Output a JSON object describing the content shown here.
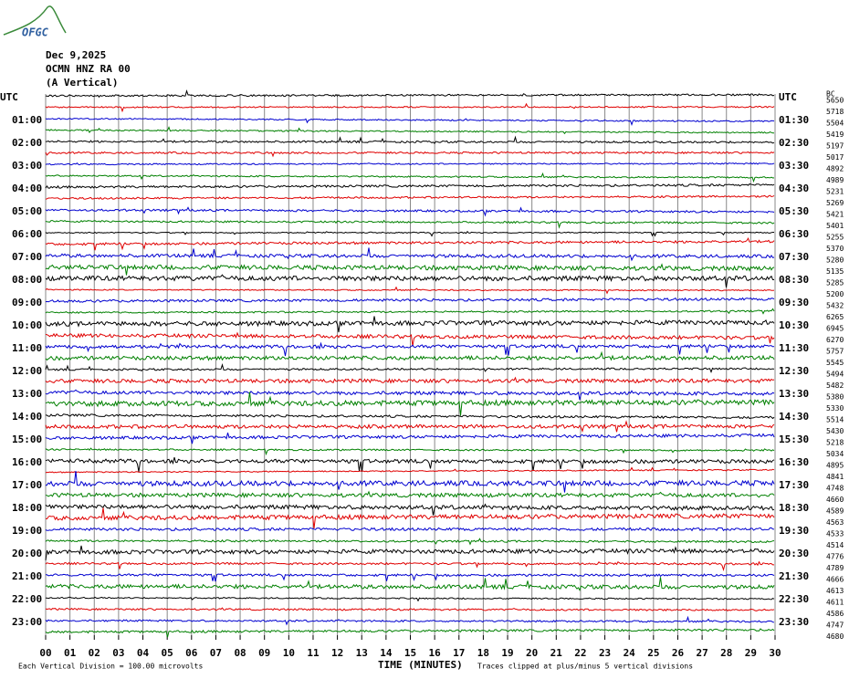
{
  "logo": {
    "text": "OFGC"
  },
  "header": {
    "date": "Dec 9,2025",
    "station": "OCMN HNZ RA 00",
    "component": "(A Vertical)"
  },
  "left_labels": [
    "UTC",
    "01:00",
    "02:00",
    "03:00",
    "04:00",
    "05:00",
    "06:00",
    "07:00",
    "08:00",
    "09:00",
    "10:00",
    "11:00",
    "12:00",
    "13:00",
    "14:00",
    "15:00",
    "16:00",
    "17:00",
    "18:00",
    "19:00",
    "20:00",
    "21:00",
    "22:00",
    "23:00"
  ],
  "right_labels": [
    "UTC",
    "01:30",
    "02:30",
    "03:30",
    "04:30",
    "05:30",
    "06:30",
    "07:30",
    "08:30",
    "09:30",
    "10:30",
    "11:30",
    "12:30",
    "13:30",
    "14:30",
    "15:30",
    "16:30",
    "17:30",
    "18:30",
    "19:30",
    "20:30",
    "21:30",
    "22:30",
    "23:30"
  ],
  "right_corner": "BC",
  "trace_levels": [
    5650,
    5718,
    5504,
    5419,
    5197,
    5017,
    4892,
    4989,
    5231,
    5269,
    5421,
    5401,
    5255,
    5370,
    5280,
    5135,
    5285,
    5200,
    5432,
    6265,
    6945,
    6270,
    5757,
    5545,
    5494,
    5482,
    5380,
    5330,
    5514,
    5430,
    5218,
    5034,
    4895,
    4841,
    4748,
    4660,
    4589,
    4563,
    4533,
    4514,
    4776,
    4789,
    4666,
    4613,
    4611,
    4586,
    4747,
    4680
  ],
  "trace_colors": [
    "#000000",
    "#e00000",
    "#0000d0",
    "#008000"
  ],
  "x_ticks": [
    "00",
    "01",
    "02",
    "03",
    "04",
    "05",
    "06",
    "07",
    "08",
    "09",
    "10",
    "11",
    "12",
    "13",
    "14",
    "15",
    "16",
    "17",
    "18",
    "19",
    "20",
    "21",
    "22",
    "23",
    "24",
    "25",
    "26",
    "27",
    "28",
    "29",
    "30"
  ],
  "footer": {
    "scale": "Each Vertical Division =  100.00 microvolts",
    "axis_title": "TIME (MINUTES)",
    "clip_note": "Traces clipped at plus/minus 5 vertical divisions"
  }
}
